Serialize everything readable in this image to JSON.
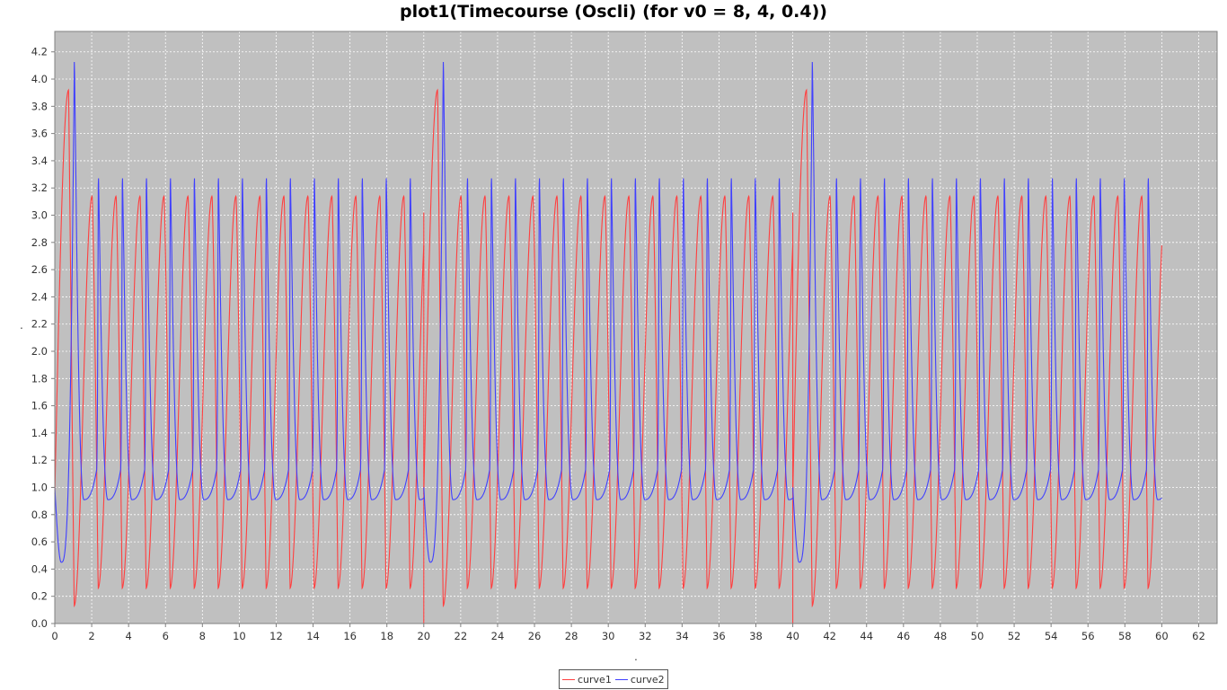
{
  "chart_data": {
    "type": "line",
    "title": "plot1(Timecourse  (Oscli) (for v0 = 8, 4, 0.4))",
    "xlabel": ".",
    "ylabel": ".",
    "xlim": [
      0,
      63
    ],
    "ylim": [
      0,
      4.35
    ],
    "x_ticks": [
      "0",
      "2",
      "4",
      "6",
      "8",
      "10",
      "12",
      "14",
      "16",
      "18",
      "20",
      "22",
      "24",
      "26",
      "28",
      "30",
      "32",
      "34",
      "36",
      "38",
      "40",
      "42",
      "44",
      "46",
      "48",
      "50",
      "52",
      "54",
      "56",
      "58",
      "60",
      "62"
    ],
    "y_ticks": [
      "0.0",
      "0.2",
      "0.4",
      "0.6",
      "0.8",
      "1.0",
      "1.2",
      "1.4",
      "1.6",
      "1.8",
      "2.0",
      "2.2",
      "2.4",
      "2.6",
      "2.8",
      "3.0",
      "3.2",
      "3.4",
      "3.6",
      "3.8",
      "4.0",
      "4.2"
    ],
    "grid": true,
    "legend_position": "bottom",
    "background": "#c0c0c0",
    "series": [
      {
        "name": "curve1",
        "color": "#ff4040",
        "description": "oscillation with period ~1.3 between ~0.26 and ~3.14; reset at t=0,20,40 with first peak ~3.92 and trough ~0.13",
        "segments": [
          {
            "start": 0,
            "end": 20,
            "first_peak": 3.92,
            "first_min": 0.13,
            "peak": 3.14,
            "min": 0.26,
            "end_value": 3.02
          },
          {
            "start": 20,
            "end": 40,
            "first_peak": 3.92,
            "first_min": 0.13,
            "peak": 3.14,
            "min": 0.26,
            "end_value": 3.02
          },
          {
            "start": 40,
            "end": 60,
            "first_peak": 3.92,
            "first_min": 0.13,
            "peak": 3.14,
            "min": 0.26,
            "end_value": 3.02
          }
        ]
      },
      {
        "name": "curve2",
        "color": "#4040ff",
        "description": "spiky oscillation with period ~1.3 between ~0.91 and ~3.36; reset at t=0,20,40 with initial trough ~0.45 and first spike ~4.17",
        "segments": [
          {
            "start": 0,
            "end": 20,
            "first_min": 0.45,
            "first_peak": 4.17,
            "peak": 3.36,
            "min": 0.91
          },
          {
            "start": 20,
            "end": 40,
            "first_min": 0.45,
            "first_peak": 4.17,
            "peak": 3.36,
            "min": 0.91
          },
          {
            "start": 40,
            "end": 60,
            "first_min": 0.45,
            "first_peak": 4.17,
            "peak": 3.36,
            "min": 0.91
          }
        ]
      }
    ]
  }
}
